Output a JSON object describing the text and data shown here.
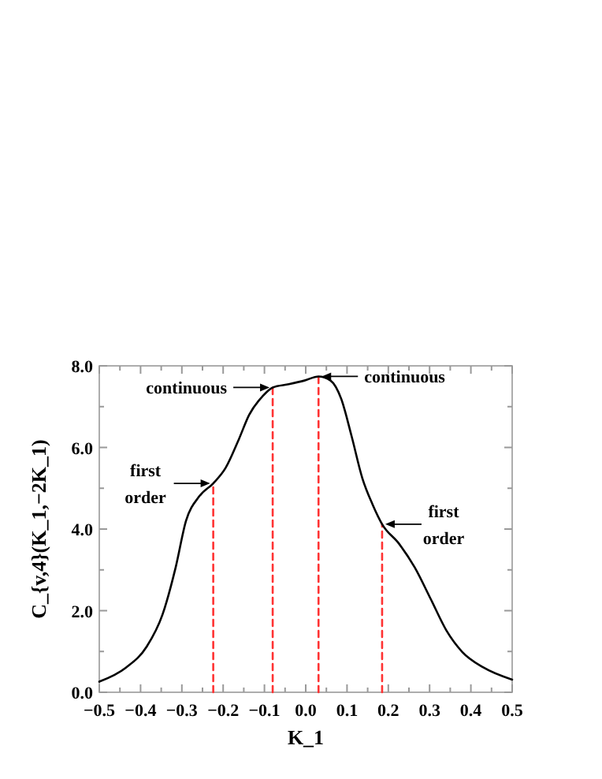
{
  "chart_data": {
    "type": "line",
    "xlabel": "K_1",
    "ylabel": "C_{v,4}(K_1,−2K_1)",
    "xlim": [
      -0.5,
      0.5
    ],
    "ylim": [
      0,
      8
    ],
    "xticks": [
      {
        "value": -0.5,
        "label": "−0.5"
      },
      {
        "value": -0.45,
        "label": null
      },
      {
        "value": -0.4,
        "label": "−0.4"
      },
      {
        "value": -0.35,
        "label": null
      },
      {
        "value": -0.3,
        "label": "−0.3"
      },
      {
        "value": -0.25,
        "label": null
      },
      {
        "value": -0.2,
        "label": "−0.2"
      },
      {
        "value": -0.15,
        "label": null
      },
      {
        "value": -0.1,
        "label": "−0.1"
      },
      {
        "value": -0.05,
        "label": null
      },
      {
        "value": 0,
        "label": "0.0"
      },
      {
        "value": 0.05,
        "label": null
      },
      0.1,
      {
        "value": 0.15,
        "label": null
      },
      0.2,
      {
        "value": 0.25,
        "label": null
      },
      0.3,
      {
        "value": 0.35,
        "label": null
      },
      0.4,
      {
        "value": 0.45,
        "label": null
      },
      0.5
    ],
    "yticks": [
      {
        "value": 0,
        "label": "0.0"
      },
      {
        "value": 1,
        "label": null
      },
      {
        "value": 2,
        "label": "2.0"
      },
      {
        "value": 3,
        "label": null
      },
      {
        "value": 4,
        "label": "4.0"
      },
      {
        "value": 5,
        "label": null
      },
      {
        "value": 6,
        "label": "6.0"
      },
      {
        "value": 7,
        "label": null
      },
      {
        "value": 8,
        "label": "8.0"
      }
    ],
    "grid": false,
    "series": [
      {
        "color": "#000000",
        "line_style": "solid",
        "x": [
          -0.5,
          -0.436,
          -0.385,
          -0.347,
          -0.315,
          -0.29,
          -0.258,
          -0.224,
          -0.194,
          -0.162,
          -0.137,
          -0.105,
          -0.08,
          -0.041,
          -0.003,
          0.031,
          0.06,
          0.086,
          0.111,
          0.137,
          0.162,
          0.185,
          0.226,
          0.264,
          0.303,
          0.341,
          0.379,
          0.43,
          0.5
        ],
        "values": [
          0.26,
          0.6,
          1.12,
          1.9,
          3.06,
          4.2,
          4.8,
          5.12,
          5.5,
          6.2,
          6.8,
          7.25,
          7.47,
          7.55,
          7.64,
          7.74,
          7.64,
          7.19,
          6.28,
          5.25,
          4.6,
          4.12,
          3.64,
          3.06,
          2.28,
          1.51,
          0.99,
          0.61,
          0.31
        ]
      },
      {
        "color": "#ff3333",
        "line_style": "dashed",
        "x": [
          -0.224,
          -0.224
        ],
        "values": [
          0,
          5.12
        ]
      },
      {
        "color": "#ff3333",
        "line_style": "dashed",
        "x": [
          -0.08,
          -0.08
        ],
        "values": [
          0,
          7.47
        ]
      },
      {
        "color": "#ff3333",
        "line_style": "dashed",
        "x": [
          0.031,
          0.031
        ],
        "values": [
          0,
          7.74
        ]
      },
      {
        "color": "#ff3333",
        "line_style": "dashed",
        "x": [
          0.185,
          0.185
        ],
        "values": [
          0,
          4.12
        ]
      }
    ],
    "annotations": [
      {
        "text": "continuous",
        "x": -0.08,
        "y": 7.47
      },
      {
        "text": "continuous",
        "x": 0.031,
        "y": 7.74
      },
      {
        "text": "first order",
        "x": -0.224,
        "y": 5.12
      },
      {
        "text": "first order",
        "x": 0.185,
        "y": 4.12
      }
    ]
  }
}
